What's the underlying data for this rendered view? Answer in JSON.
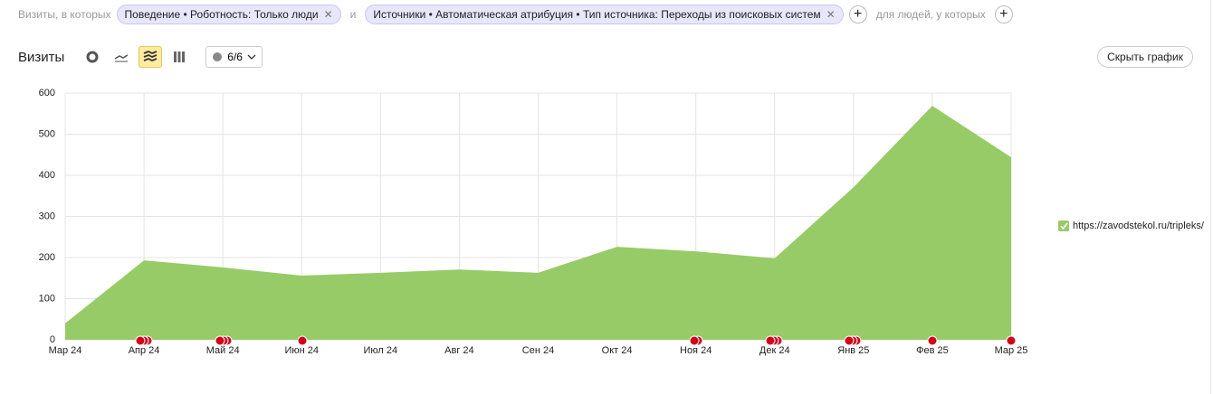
{
  "filter_bar": {
    "prefix": "Визиты, в которых",
    "filters": [
      "Поведение • Роботность: Только люди",
      "Источники • Автоматическая атрибуция • Тип источника: Переходы из поисковых систем"
    ],
    "joiner": "и",
    "people_label": "для людей, у которых"
  },
  "toolbar": {
    "title": "Визиты",
    "annotations": "6/6",
    "hide_button": "Скрыть график"
  },
  "chart_data": {
    "type": "area",
    "categories": [
      "Мар 24",
      "Апр 24",
      "Май 24",
      "Июн 24",
      "Июл 24",
      "Авг 24",
      "Сен 24",
      "Окт 24",
      "Ноя 24",
      "Дек 24",
      "Янв 25",
      "Фев 25",
      "Мар 25"
    ],
    "series": [
      {
        "name": "https://zavodstekol.ru/tripleks/",
        "color": "#97cb68",
        "values": [
          40,
          193,
          176,
          156,
          163,
          171,
          163,
          226,
          215,
          198,
          371,
          569,
          444
        ]
      }
    ],
    "ylim": [
      0,
      600
    ],
    "yticks": [
      0,
      100,
      200,
      300,
      400,
      500,
      600
    ],
    "grid": true
  }
}
